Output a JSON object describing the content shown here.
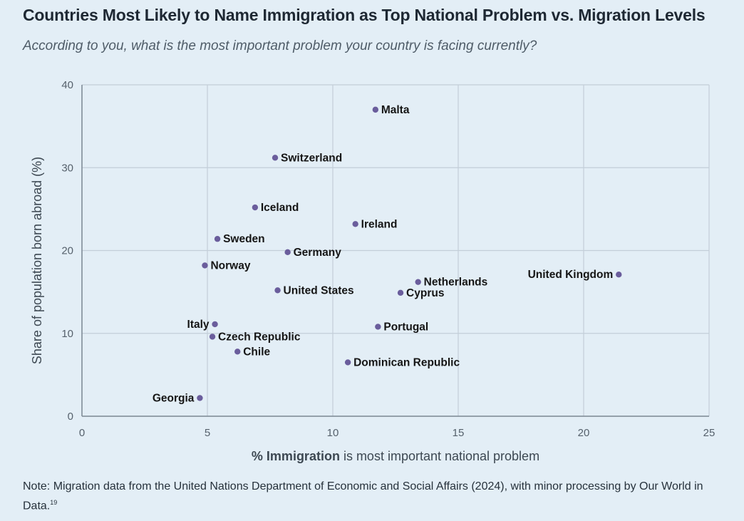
{
  "title": "Countries Most Likely to Name Immigration as Top National Problem vs. Migration Levels",
  "subtitle": "According to you, what is the most important problem your country is facing currently?",
  "note": {
    "text": "Note: Migration data from the United Nations Department of Economic and Social Affairs (2024), with minor processing by Our World in Data.",
    "footnote": "19"
  },
  "colors": {
    "background": "#e3eef6",
    "grid": "#c3ced8",
    "axis": "#7c8894",
    "point": "#6a5d9c",
    "label": "#151515"
  },
  "chart_data": {
    "type": "scatter",
    "title": "Countries Most Likely to Name Immigration as Top National Problem vs. Migration Levels",
    "xlabel_bold": "% Immigration",
    "xlabel_rest": " is most important national problem",
    "ylabel": "Share of population born abroad (%)",
    "xlim": [
      0,
      25
    ],
    "ylim": [
      0,
      40
    ],
    "xticks": [
      0,
      5,
      10,
      15,
      20,
      25
    ],
    "yticks": [
      0,
      10,
      20,
      30,
      40
    ],
    "grid": true,
    "points": [
      {
        "label": "Malta",
        "x": 11.7,
        "y": 37.0,
        "side": "right"
      },
      {
        "label": "Switzerland",
        "x": 7.7,
        "y": 31.2,
        "side": "right"
      },
      {
        "label": "Iceland",
        "x": 6.9,
        "y": 25.2,
        "side": "right"
      },
      {
        "label": "Ireland",
        "x": 10.9,
        "y": 23.2,
        "side": "right"
      },
      {
        "label": "Sweden",
        "x": 5.4,
        "y": 21.4,
        "side": "right"
      },
      {
        "label": "Germany",
        "x": 8.2,
        "y": 19.8,
        "side": "right"
      },
      {
        "label": "Norway",
        "x": 4.9,
        "y": 18.2,
        "side": "right"
      },
      {
        "label": "United Kingdom",
        "x": 21.4,
        "y": 17.1,
        "side": "left"
      },
      {
        "label": "Netherlands",
        "x": 13.4,
        "y": 16.2,
        "side": "right"
      },
      {
        "label": "United States",
        "x": 7.8,
        "y": 15.2,
        "side": "right"
      },
      {
        "label": "Cyprus",
        "x": 12.7,
        "y": 14.9,
        "side": "right"
      },
      {
        "label": "Italy",
        "x": 5.3,
        "y": 11.1,
        "side": "left"
      },
      {
        "label": "Portugal",
        "x": 11.8,
        "y": 10.8,
        "side": "right"
      },
      {
        "label": "Czech Republic",
        "x": 5.2,
        "y": 9.6,
        "side": "right"
      },
      {
        "label": "Chile",
        "x": 6.2,
        "y": 7.8,
        "side": "right"
      },
      {
        "label": "Dominican Republic",
        "x": 10.6,
        "y": 6.5,
        "side": "right"
      },
      {
        "label": "Georgia",
        "x": 4.7,
        "y": 2.2,
        "side": "left"
      }
    ]
  }
}
